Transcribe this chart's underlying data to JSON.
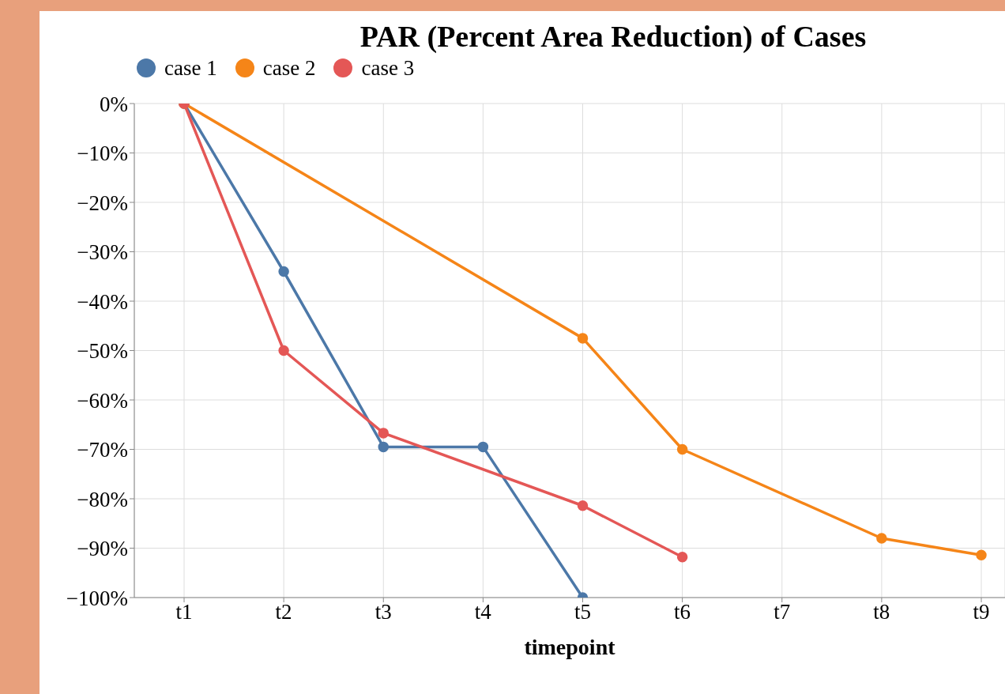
{
  "chart_data": {
    "type": "line",
    "title": "PAR (Percent Area Reduction) of Cases",
    "xlabel": "timepoint",
    "categories": [
      "t1",
      "t2",
      "t3",
      "t4",
      "t5",
      "t6",
      "t7",
      "t8",
      "t9"
    ],
    "series": [
      {
        "name": "case 1",
        "color": "#4c78a8",
        "values": [
          0,
          -34,
          -69.5,
          -69.5,
          -100,
          null,
          null,
          null,
          null
        ]
      },
      {
        "name": "case 2",
        "color": "#f58518",
        "values": [
          0,
          null,
          null,
          null,
          -47.5,
          -70,
          null,
          -88,
          -91.4
        ]
      },
      {
        "name": "case 3",
        "color": "#e45756",
        "values": [
          0,
          -50,
          -66.7,
          null,
          -81.4,
          -91.8,
          null,
          null,
          null
        ]
      }
    ],
    "ylim": [
      -100,
      0
    ],
    "yticks": [
      {
        "value": 0,
        "label": "0%"
      },
      {
        "value": -10,
        "label": "−10%"
      },
      {
        "value": -20,
        "label": "−20%"
      },
      {
        "value": -30,
        "label": "−30%"
      },
      {
        "value": -40,
        "label": "−40%"
      },
      {
        "value": -50,
        "label": "−50%"
      },
      {
        "value": -60,
        "label": "−60%"
      },
      {
        "value": -70,
        "label": "−70%"
      },
      {
        "value": -80,
        "label": "−80%"
      },
      {
        "value": -90,
        "label": "−90%"
      },
      {
        "value": -100,
        "label": "−100%"
      }
    ],
    "grid": true,
    "legend": "top left",
    "marker": "circle",
    "line_style": "solid"
  }
}
